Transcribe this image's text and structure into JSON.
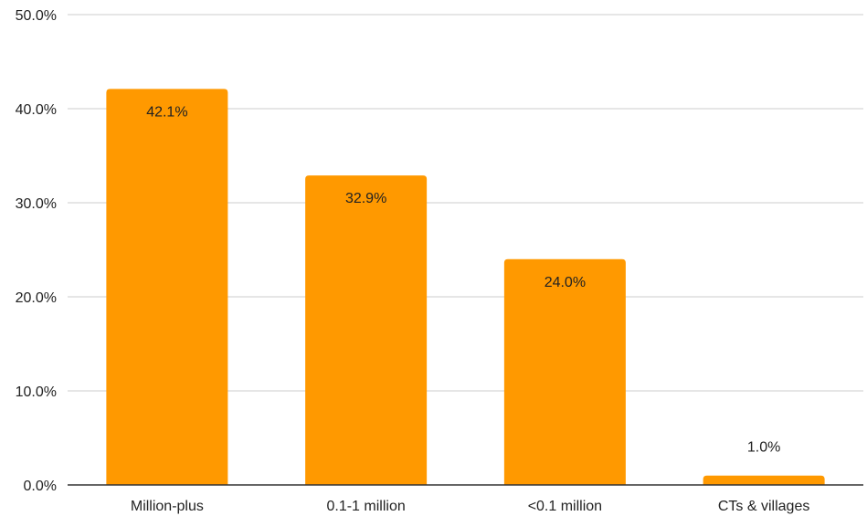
{
  "chart_data": {
    "type": "bar",
    "title": "",
    "xlabel": "",
    "ylabel": "",
    "categories": [
      "Million-plus",
      "0.1-1 million",
      "<0.1 million",
      "CTs & villages"
    ],
    "values": [
      42.1,
      32.9,
      24.0,
      1.0
    ],
    "data_labels": [
      "42.1%",
      "32.9%",
      "24.0%",
      "1.0%"
    ],
    "ylim": [
      0,
      50
    ],
    "yticks": [
      0,
      10,
      20,
      30,
      40,
      50
    ],
    "ytick_labels": [
      "0.0%",
      "10.0%",
      "20.0%",
      "30.0%",
      "40.0%",
      "50.0%"
    ],
    "grid": true,
    "legend": "none",
    "bar_color": "#ff9900"
  }
}
